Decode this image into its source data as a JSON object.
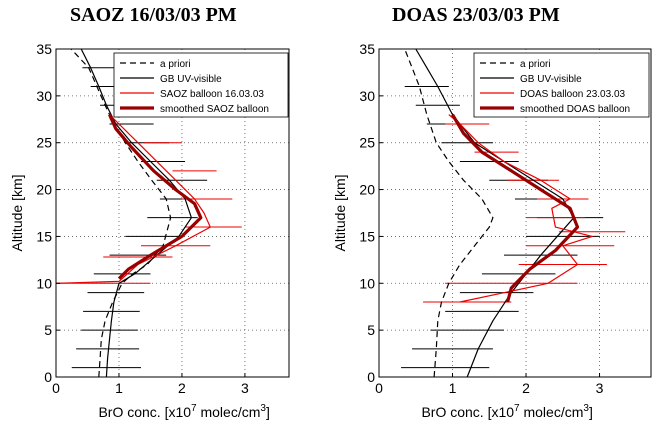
{
  "chart_data": [
    {
      "type": "line",
      "title": "SAOZ 16/03/03 PM",
      "xlabel_prefix": "BrO conc. [x10",
      "xlabel_exp1": "7",
      "xlabel_mid": " molec/cm",
      "xlabel_exp2": "3",
      "xlabel_suffix": "]",
      "ylabel": "Altitude [km]",
      "xlim": [
        0,
        3.7
      ],
      "ylim": [
        0,
        35
      ],
      "xticks": [
        "0",
        "1",
        "2",
        "3"
      ],
      "yticks": [
        "0",
        "5",
        "10",
        "15",
        "20",
        "25",
        "30",
        "35"
      ],
      "grid": "dotted",
      "legend_position": "top-right",
      "series": [
        {
          "name": "a priori",
          "style": "dashed",
          "color": "#000000",
          "width": 1.2,
          "x": [
            0.68,
            0.7,
            0.72,
            0.78,
            0.9,
            1.05,
            1.22,
            1.45,
            1.7,
            1.82,
            1.75,
            1.52,
            1.3,
            1.1,
            0.92,
            0.78,
            0.65,
            0.52,
            0.38,
            0.24
          ],
          "y": [
            0,
            2,
            4,
            6,
            8,
            10,
            11,
            12,
            14,
            17,
            19,
            21,
            23,
            25,
            27,
            29,
            31,
            33,
            34,
            35
          ]
        },
        {
          "name": "GB UV-visible",
          "style": "solid",
          "color": "#000000",
          "width": 1.2,
          "x": [
            0.8,
            0.82,
            0.85,
            0.88,
            0.92,
            1.0,
            1.25,
            1.6,
            1.95,
            2.15,
            2.05,
            1.8,
            1.5,
            1.2,
            0.95,
            0.8,
            0.68,
            0.55,
            0.4
          ],
          "y": [
            0,
            2,
            4,
            6,
            8,
            10,
            11,
            13,
            15,
            17,
            19,
            21,
            23,
            25,
            27,
            29,
            31,
            33,
            35
          ]
        },
        {
          "name": "SAOZ balloon 16.03.03",
          "style": "solid",
          "color": "#ee0000",
          "width": 1.2,
          "x": [
            0.0,
            1.0,
            1.3,
            1.9,
            2.45,
            2.35,
            2.2,
            1.75,
            1.3,
            1.0,
            0.85
          ],
          "y": [
            10,
            10.2,
            12,
            14,
            16,
            17.5,
            19,
            22,
            25,
            27,
            28
          ]
        },
        {
          "name": "smoothed SAOZ balloon",
          "style": "solid",
          "color": "#990000",
          "width": 3.2,
          "x": [
            1.0,
            1.15,
            1.5,
            2.0,
            2.3,
            2.2,
            1.9,
            1.55,
            1.2,
            0.95,
            0.85
          ],
          "y": [
            10.5,
            11.5,
            13,
            15,
            17,
            18.5,
            20,
            22,
            24.5,
            26.5,
            28
          ]
        }
      ],
      "errorbars": {
        "black": {
          "center": [
            0.8,
            0.82,
            0.85,
            0.88,
            0.95,
            1.05,
            1.3,
            1.55,
            1.85,
            2.05,
            2.0,
            1.7,
            1.45,
            1.2,
            1.0,
            0.85,
            0.72
          ],
          "y": [
            1,
            3,
            5,
            7,
            9,
            11,
            13,
            15,
            17,
            19,
            21,
            23,
            25,
            27,
            29,
            31,
            33
          ],
          "halfwidth": [
            0.55,
            0.5,
            0.45,
            0.45,
            0.45,
            0.45,
            0.45,
            0.45,
            0.4,
            0.4,
            0.4,
            0.35,
            0.35,
            0.35,
            0.3,
            0.3,
            0.3
          ]
        },
        "red": {
          "center": [
            0.75,
            1.3,
            1.9,
            2.5,
            2.4,
            2.2,
            1.7,
            1.25
          ],
          "y": [
            10,
            12.8,
            14,
            16,
            19,
            22,
            25,
            28
          ],
          "halfwidth": [
            0.75,
            0.55,
            0.55,
            0.45,
            0.4,
            0.35,
            0.3,
            0.3
          ]
        }
      }
    },
    {
      "type": "line",
      "title": "DOAS 23/03/03 PM",
      "xlabel_prefix": "BrO conc. [x10",
      "xlabel_exp1": "7",
      "xlabel_mid": " molec/cm",
      "xlabel_exp2": "3",
      "xlabel_suffix": "]",
      "ylabel": "Altitude [km]",
      "xlim": [
        0,
        3.7
      ],
      "ylim": [
        0,
        35
      ],
      "xticks": [
        "0",
        "1",
        "2",
        "3"
      ],
      "yticks": [
        "0",
        "5",
        "10",
        "15",
        "20",
        "25",
        "30",
        "35"
      ],
      "grid": "dotted",
      "legend_position": "top-right",
      "series": [
        {
          "name": "a priori",
          "style": "dashed",
          "color": "#000000",
          "width": 1.2,
          "x": [
            0.75,
            0.78,
            0.8,
            0.85,
            0.95,
            1.1,
            1.3,
            1.5,
            1.55,
            1.4,
            1.15,
            0.95,
            0.78,
            0.65,
            0.55,
            0.45,
            0.35
          ],
          "y": [
            0,
            3,
            6,
            8,
            10,
            12,
            14,
            16,
            17,
            19,
            21,
            23,
            25,
            28,
            31,
            33,
            35
          ]
        },
        {
          "name": "GB UV-visible",
          "style": "solid",
          "color": "#000000",
          "width": 1.2,
          "x": [
            1.2,
            1.35,
            1.55,
            1.8,
            2.2,
            2.65,
            2.5,
            2.1,
            1.7,
            1.3,
            1.0,
            0.8,
            0.65,
            0.5
          ],
          "y": [
            0,
            3,
            6,
            9,
            13,
            17,
            19,
            21,
            23,
            25,
            28,
            31,
            33,
            35
          ]
        },
        {
          "name": "DOAS balloon 23.03.03",
          "style": "solid",
          "color": "#ee0000",
          "width": 1.2,
          "x": [
            1.1,
            1.7,
            2.3,
            2.7,
            2.5,
            2.9,
            2.4,
            2.35,
            2.6,
            2.2,
            1.7,
            1.35,
            1.1,
            0.95
          ],
          "y": [
            8,
            9,
            10,
            12,
            14,
            15,
            16,
            18,
            19,
            21,
            23,
            25,
            27,
            28
          ]
        },
        {
          "name": "smoothed DOAS balloon",
          "style": "solid",
          "color": "#990000",
          "width": 3.2,
          "x": [
            1.75,
            1.8,
            2.05,
            2.4,
            2.7,
            2.6,
            2.2,
            1.8,
            1.4,
            1.15,
            1.0
          ],
          "y": [
            8,
            9.5,
            11.5,
            13.5,
            16,
            18,
            20,
            22,
            24,
            26,
            28
          ]
        }
      ],
      "errorbars": {
        "black": {
          "center": [
            0.9,
            1.0,
            1.2,
            1.4,
            1.6,
            1.9,
            2.2,
            2.5,
            2.6,
            2.3,
            1.9,
            1.5,
            1.2,
            0.95,
            0.8,
            0.65
          ],
          "y": [
            1,
            3,
            5,
            7,
            9,
            11,
            13,
            15,
            17,
            19,
            21,
            23,
            25,
            27,
            29,
            31
          ],
          "halfwidth": [
            0.6,
            0.55,
            0.5,
            0.5,
            0.5,
            0.5,
            0.5,
            0.5,
            0.45,
            0.45,
            0.4,
            0.4,
            0.35,
            0.3,
            0.3,
            0.3
          ]
        },
        "red": {
          "center": [
            1.2,
            1.8,
            2.5,
            2.6,
            2.9,
            2.4,
            2.5,
            2.1,
            1.6,
            1.2
          ],
          "y": [
            8,
            10,
            12,
            14,
            15.5,
            17,
            19,
            21,
            24,
            27
          ],
          "halfwidth": [
            0.6,
            0.9,
            0.6,
            0.6,
            0.45,
            0.4,
            0.35,
            0.35,
            0.3,
            0.3
          ]
        }
      }
    }
  ]
}
